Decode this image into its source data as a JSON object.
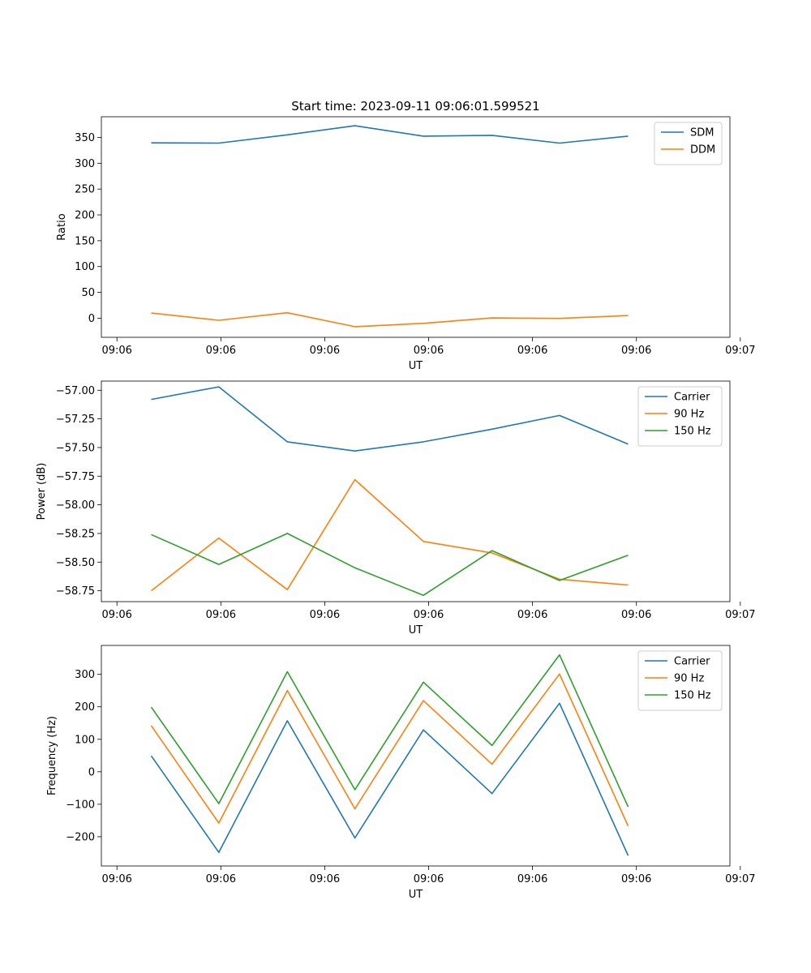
{
  "chart_data": [
    {
      "type": "line",
      "title": "Start time: 2023-09-11 09:06:01.599521",
      "xlabel": "UT",
      "ylabel": "Ratio",
      "x_tick_labels": [
        "09:06",
        "09:06",
        "09:06",
        "09:06",
        "09:06",
        "09:06",
        "09:07"
      ],
      "xlim": [
        -0.15,
        5.9
      ],
      "ylim": [
        -37,
        390
      ],
      "yticks": [
        0,
        50,
        100,
        150,
        200,
        250,
        300,
        350
      ],
      "legend_loc": "upper right",
      "x": [
        0.33,
        0.98,
        1.64,
        2.29,
        2.95,
        3.61,
        4.26,
        4.92
      ],
      "series": [
        {
          "name": "SDM",
          "color": "#1f77b4",
          "values": [
            339.5,
            339.0,
            355.0,
            372.5,
            352.5,
            354.0,
            339.0,
            352.5
          ]
        },
        {
          "name": "DDM",
          "color": "#ff7f0e",
          "values": [
            10.0,
            -4.0,
            10.5,
            -16.5,
            -10.0,
            0.5,
            -0.5,
            5.0
          ]
        }
      ]
    },
    {
      "type": "line",
      "title": "",
      "xlabel": "UT",
      "ylabel": "Power (dB)",
      "x_tick_labels": [
        "09:06",
        "09:06",
        "09:06",
        "09:06",
        "09:06",
        "09:06",
        "09:07"
      ],
      "xlim": [
        -0.15,
        5.9
      ],
      "ylim": [
        -58.845,
        -56.92
      ],
      "yticks": [
        -58.75,
        -58.5,
        -58.25,
        -58.0,
        -57.75,
        -57.5,
        -57.25,
        -57.0
      ],
      "ytick_labels": [
        "−58.75",
        "−58.50",
        "−58.25",
        "−58.00",
        "−57.75",
        "−57.50",
        "−57.25",
        "−57.00"
      ],
      "legend_loc": "upper right",
      "x": [
        0.33,
        0.98,
        1.64,
        2.29,
        2.95,
        3.61,
        4.26,
        4.92
      ],
      "series": [
        {
          "name": "Carrier",
          "color": "#1f77b4",
          "values": [
            -57.08,
            -56.97,
            -57.45,
            -57.53,
            -57.45,
            -57.34,
            -57.22,
            -57.47
          ]
        },
        {
          "name": "90 Hz",
          "color": "#ff7f0e",
          "values": [
            -58.75,
            -58.29,
            -58.74,
            -57.78,
            -58.32,
            -58.42,
            -58.65,
            -58.7
          ]
        },
        {
          "name": "150 Hz",
          "color": "#2ca02c",
          "values": [
            -58.26,
            -58.52,
            -58.25,
            -58.55,
            -58.79,
            -58.4,
            -58.66,
            -58.44
          ]
        }
      ]
    },
    {
      "type": "line",
      "title": "",
      "xlabel": "UT",
      "ylabel": "Frequency (Hz)",
      "x_tick_labels": [
        "09:06",
        "09:06",
        "09:06",
        "09:06",
        "09:06",
        "09:06",
        "09:07"
      ],
      "xlim": [
        -0.15,
        5.9
      ],
      "ylim": [
        -290,
        389
      ],
      "yticks": [
        -200,
        -100,
        0,
        100,
        200,
        300
      ],
      "ytick_labels": [
        "−200",
        "−100",
        "0",
        "100",
        "200",
        "300"
      ],
      "legend_loc": "upper right",
      "x": [
        0.33,
        0.98,
        1.64,
        2.29,
        2.95,
        3.61,
        4.26,
        4.92
      ],
      "series": [
        {
          "name": "Carrier",
          "color": "#1f77b4",
          "values": [
            49,
            -248,
            157,
            -204,
            129,
            -67,
            211,
            -258
          ]
        },
        {
          "name": "90 Hz",
          "color": "#ff7f0e",
          "values": [
            142,
            -158,
            250,
            -114,
            219,
            23,
            301,
            -167
          ]
        },
        {
          "name": "150 Hz",
          "color": "#2ca02c",
          "values": [
            199,
            -98,
            308,
            -55,
            276,
            81,
            360,
            -108
          ]
        }
      ]
    }
  ]
}
